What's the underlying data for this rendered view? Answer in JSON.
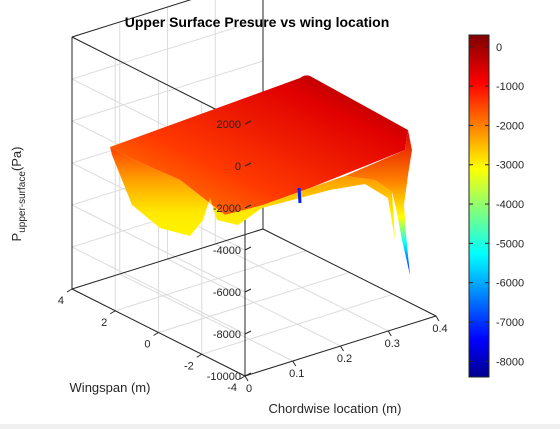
{
  "chart_data": {
    "type": "surface",
    "title": "Upper Surface Presure vs wing location",
    "xlabel": "Chordwise location (m)",
    "ylabel": "Wingspan (m)",
    "zlabel_main": "P",
    "zlabel_sub": "upper-surface",
    "zlabel_unit": "(Pa)",
    "x_ticks": [
      "0",
      "0.1",
      "0.2",
      "0.3",
      "0.4"
    ],
    "y_ticks": [
      "4",
      "2",
      "0",
      "-2",
      "-4"
    ],
    "z_ticks": [
      "2000",
      "0",
      "-2000",
      "-4000",
      "-6000",
      "-8000",
      "-10000"
    ],
    "xlim": [
      0,
      0.4
    ],
    "ylim": [
      -4,
      4
    ],
    "zlim": [
      -10000,
      2000
    ],
    "colormap": "jet",
    "colorbar": {
      "clim": [
        -8400,
        300
      ],
      "ticks": [
        "0",
        "-1000",
        "-2000",
        "-3000",
        "-4000",
        "-5000",
        "-6000",
        "-7000",
        "-8000"
      ],
      "tick_values": [
        0,
        -1000,
        -2000,
        -3000,
        -4000,
        -5000,
        -6000,
        -7000,
        -8000
      ]
    },
    "surface_samples": [
      {
        "x": 0.0,
        "y": 4,
        "p": -1500
      },
      {
        "x": 0.05,
        "y": 2,
        "p": -4200
      },
      {
        "x": 0.1,
        "y": 0,
        "p": -5500
      },
      {
        "x": 0.2,
        "y": -2,
        "p": -4500
      },
      {
        "x": 0.3,
        "y": -4,
        "p": -3000
      },
      {
        "x": 0.35,
        "y": -4,
        "p": -2200
      },
      {
        "x": 0.38,
        "y": 4,
        "p": -500
      },
      {
        "x": 0.4,
        "y": -4,
        "p": -8500
      }
    ]
  }
}
